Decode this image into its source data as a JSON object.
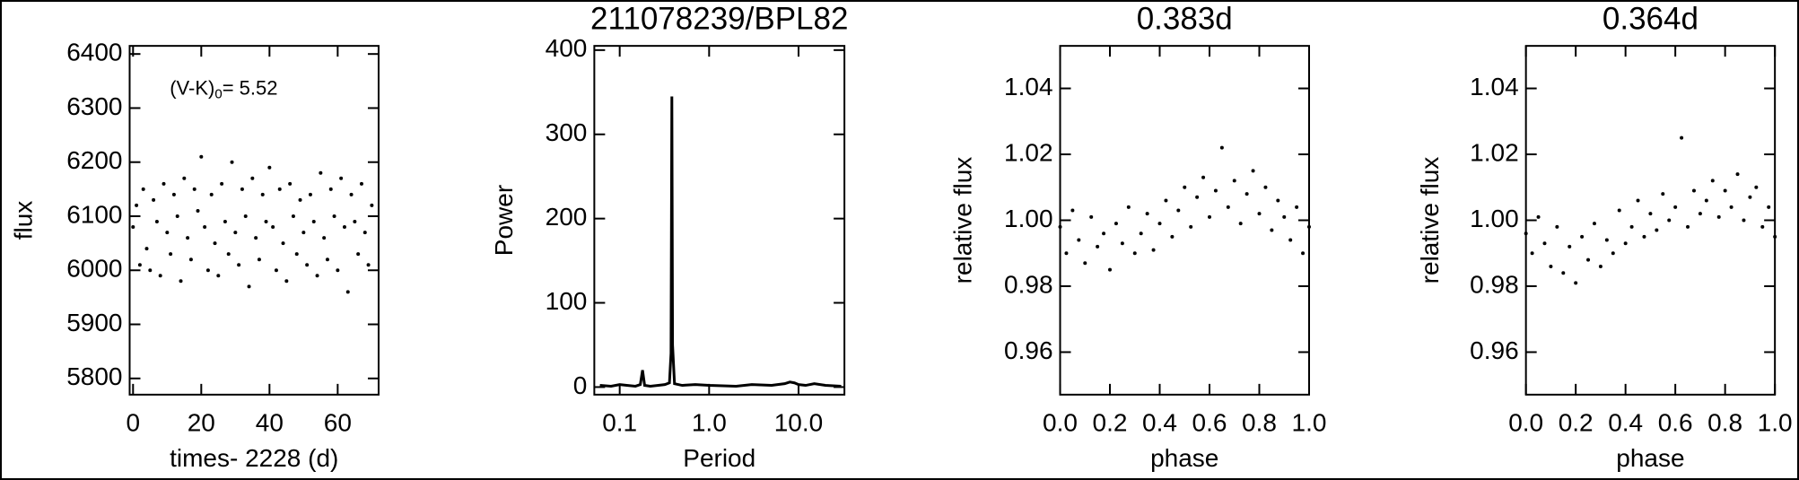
{
  "chart_data": [
    {
      "type": "scatter",
      "xlabel": "times- 2228 (d)",
      "ylabel": "flux",
      "annotation": {
        "main": "(V-K)",
        "sub": "0",
        "rest": "= 5.52"
      },
      "color": "#000000",
      "x": [
        0,
        1,
        2,
        3,
        4,
        5,
        6,
        7,
        8,
        9,
        10,
        11,
        12,
        13,
        14,
        15,
        16,
        17,
        18,
        19,
        20,
        21,
        22,
        23,
        24,
        25,
        26,
        27,
        28,
        29,
        30,
        31,
        32,
        33,
        34,
        35,
        36,
        37,
        38,
        39,
        40,
        41,
        42,
        43,
        44,
        45,
        46,
        47,
        48,
        49,
        50,
        51,
        52,
        53,
        54,
        55,
        56,
        57,
        58,
        59,
        60,
        61,
        62,
        63,
        64,
        65,
        66,
        67,
        68,
        69,
        70
      ],
      "values": [
        6080,
        6120,
        6010,
        6150,
        6040,
        6000,
        6130,
        6090,
        5990,
        6160,
        6070,
        6030,
        6140,
        6100,
        5980,
        6170,
        6060,
        6020,
        6150,
        6110,
        6210,
        6080,
        6000,
        6140,
        6050,
        5990,
        6160,
        6090,
        6030,
        6200,
        6070,
        6010,
        6150,
        6100,
        5970,
        6170,
        6060,
        6020,
        6140,
        6090,
        6190,
        6080,
        6000,
        6150,
        6050,
        5980,
        6160,
        6100,
        6030,
        6130,
        6070,
        6010,
        6140,
        6090,
        5990,
        6180,
        6060,
        6020,
        6150,
        6100,
        6000,
        6170,
        6080,
        5960,
        6140,
        6090,
        6030,
        6160,
        6070,
        6010,
        6120
      ],
      "xlim": [
        -1,
        72
      ],
      "ylim": [
        5770,
        6415
      ],
      "xticks": [
        0,
        20,
        40,
        60
      ],
      "yticks": [
        5800,
        5900,
        6000,
        6100,
        6200,
        6300,
        6400
      ]
    },
    {
      "type": "line",
      "title": "211078239/BPL82",
      "xlabel": "Period",
      "ylabel": "Power",
      "xscale": "log",
      "color": "#000000",
      "x": [
        0.06,
        0.08,
        0.1,
        0.12,
        0.15,
        0.17,
        0.18,
        0.19,
        0.22,
        0.27,
        0.32,
        0.36,
        0.375,
        0.383,
        0.39,
        0.41,
        0.5,
        0.7,
        1,
        2,
        3,
        5,
        7,
        8,
        9,
        10,
        12,
        15,
        20,
        30
      ],
      "values": [
        2,
        1,
        3,
        2,
        1,
        3,
        20,
        2,
        1,
        2,
        3,
        5,
        40,
        345,
        50,
        4,
        2,
        3,
        2,
        1,
        3,
        2,
        4,
        6,
        5,
        3,
        2,
        4,
        2,
        1
      ],
      "xlim": [
        0.052,
        32.6
      ],
      "ylim": [
        -9,
        405
      ],
      "xticks": [
        0.1,
        {
          "value": 1,
          "label": "1.0"
        },
        {
          "value": 10,
          "label": "10.0"
        }
      ],
      "yticks": [
        0,
        100,
        200,
        300,
        400
      ]
    },
    {
      "type": "scatter",
      "title": "0.383d",
      "xlabel": "phase",
      "ylabel": "relative flux",
      "color": "#000000",
      "x": [
        0,
        0.025,
        0.05,
        0.075,
        0.1,
        0.125,
        0.15,
        0.175,
        0.2,
        0.225,
        0.25,
        0.275,
        0.3,
        0.325,
        0.35,
        0.375,
        0.4,
        0.425,
        0.45,
        0.475,
        0.5,
        0.525,
        0.55,
        0.575,
        0.6,
        0.625,
        0.65,
        0.675,
        0.7,
        0.725,
        0.75,
        0.775,
        0.8,
        0.825,
        0.85,
        0.875,
        0.9,
        0.925,
        0.95,
        0.975,
        1
      ],
      "values": [
        0.998,
        0.99,
        1.003,
        0.994,
        0.987,
        1.001,
        0.992,
        0.996,
        0.985,
        0.999,
        0.993,
        1.004,
        0.99,
        0.996,
        1.002,
        0.991,
        0.999,
        1.006,
        0.995,
        1.003,
        1.01,
        0.998,
        1.007,
        1.013,
        1.001,
        1.009,
        1.022,
        1.004,
        1.012,
        0.999,
        1.008,
        1.015,
        1.002,
        1.01,
        0.997,
        1.006,
        1.001,
        0.994,
        1.004,
        0.99,
        0.998
      ],
      "xlim": [
        0,
        1
      ],
      "ylim": [
        0.9471,
        1.0529
      ],
      "xticks": [
        {
          "value": 0,
          "label": "0.0"
        },
        0.2,
        0.4,
        0.6,
        0.8,
        {
          "value": 1,
          "label": "1.0"
        }
      ],
      "yticks": [
        0.96,
        0.98,
        {
          "value": 1,
          "label": "1.00"
        },
        1.02,
        1.04
      ]
    },
    {
      "type": "scatter",
      "title": "0.364d",
      "xlabel": "phase",
      "ylabel": "relative flux",
      "color": "#000000",
      "x": [
        0,
        0.025,
        0.05,
        0.075,
        0.1,
        0.125,
        0.15,
        0.175,
        0.2,
        0.225,
        0.25,
        0.275,
        0.3,
        0.325,
        0.35,
        0.375,
        0.4,
        0.425,
        0.45,
        0.475,
        0.5,
        0.525,
        0.55,
        0.575,
        0.6,
        0.625,
        0.65,
        0.675,
        0.7,
        0.725,
        0.75,
        0.775,
        0.8,
        0.825,
        0.85,
        0.875,
        0.9,
        0.925,
        0.95,
        0.975,
        1
      ],
      "values": [
        0.996,
        0.99,
        1.001,
        0.993,
        0.986,
        0.998,
        0.984,
        0.992,
        0.981,
        0.995,
        0.988,
        0.999,
        0.986,
        0.994,
        0.99,
        1.003,
        0.993,
        0.998,
        1.006,
        0.995,
        1.002,
        0.997,
        1.008,
        1.0,
        1.004,
        1.025,
        0.998,
        1.009,
        1.002,
        1.006,
        1.012,
        1.001,
        1.009,
        1.004,
        1.014,
        1.0,
        1.007,
        1.01,
        0.998,
        1.004,
        0.995
      ],
      "xlim": [
        0,
        1
      ],
      "ylim": [
        0.9471,
        1.0529
      ],
      "xticks": [
        {
          "value": 0,
          "label": "0.0"
        },
        0.2,
        0.4,
        0.6,
        0.8,
        {
          "value": 1,
          "label": "1.0"
        }
      ],
      "yticks": [
        0.96,
        0.98,
        {
          "value": 1,
          "label": "1.00"
        },
        1.02,
        1.04
      ]
    }
  ]
}
